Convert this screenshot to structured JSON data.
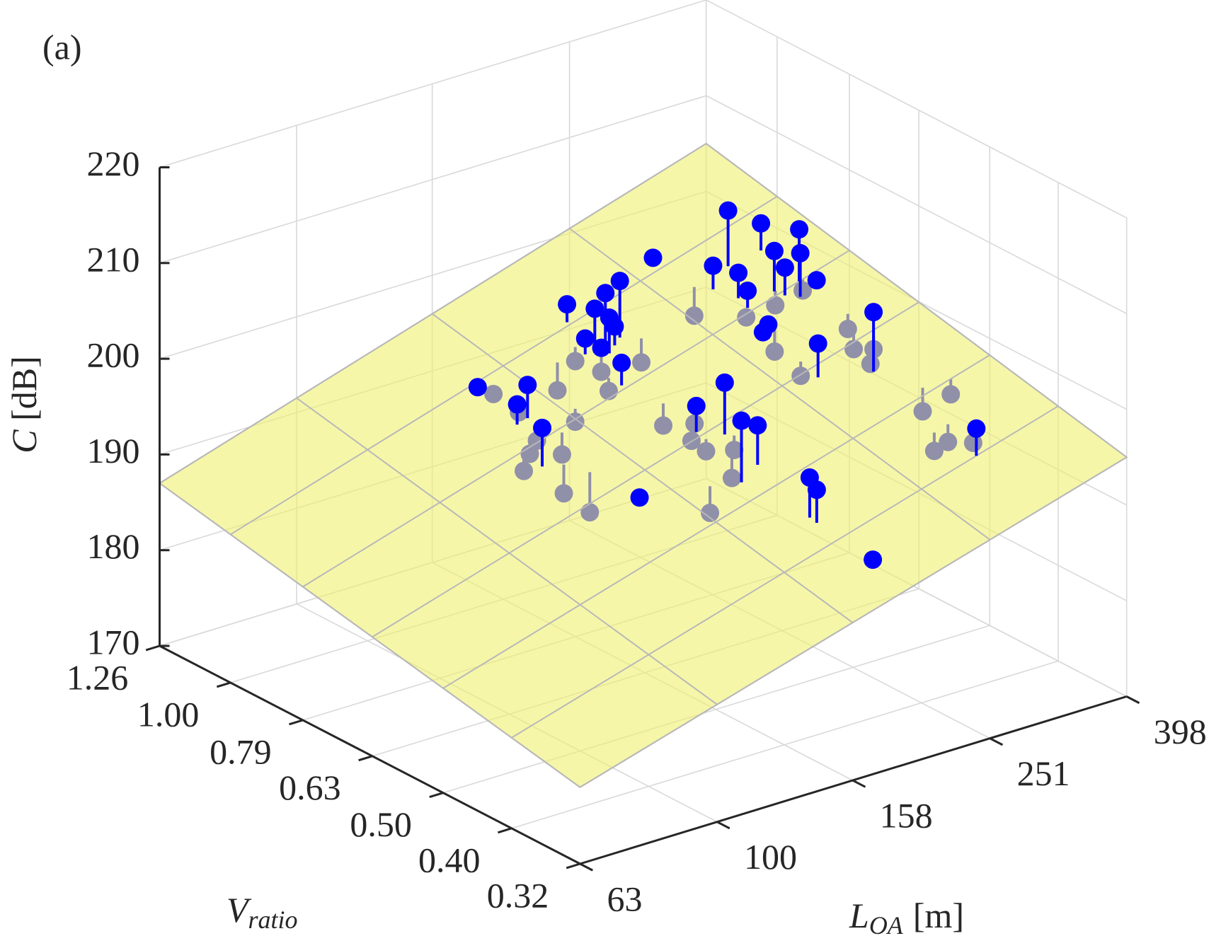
{
  "chart_data": {
    "type": "scatter3d",
    "panel_label": "(a)",
    "xlabel": {
      "symbol": "L",
      "subscript": "OA",
      "unit": "[m]"
    },
    "ylabel": {
      "symbol": "V",
      "subscript": "ratio"
    },
    "zlabel": {
      "symbol": "C",
      "unit": "[dB]"
    },
    "xscale": "log",
    "yscale": "log",
    "grid": true,
    "xlim": [
      63,
      398
    ],
    "ylim": [
      0.32,
      1.26
    ],
    "zlim": [
      170,
      220
    ],
    "xticks": [
      63,
      100,
      158,
      251,
      398
    ],
    "yticks": [
      0.32,
      {
        "value": 0.4,
        "label": "0.40"
      },
      {
        "value": 0.5,
        "label": "0.50"
      },
      0.63,
      0.79,
      {
        "value": 1,
        "label": "1.00"
      },
      1.26
    ],
    "zticks": [
      170,
      180,
      190,
      200,
      210,
      220
    ],
    "surface": {
      "color": "#f0f070",
      "x": [
        63,
        398
      ],
      "y": [
        0.32,
        1.26
      ],
      "z": [
        [
          178,
          187
        ],
        [
          195,
          205
        ]
      ]
    },
    "series": [
      {
        "color": "#0000ff",
        "x": [
          306,
          338,
          336,
          313,
          324,
          270,
          281,
          288,
          316,
          347,
          340,
          286,
          314,
          281,
          275,
          274,
          273,
          308,
          339,
          330,
          336,
          327,
          274,
          285,
          276,
          198,
          210,
          200,
          193,
          198,
          204,
          189,
          195,
          187,
          218,
          189,
          195,
          186,
          176,
          145,
          142,
          145,
          140,
          146,
          132,
          162,
          146,
          139,
          131,
          149,
          138,
          142,
          145,
          200,
          191,
          183,
          197,
          193,
          196,
          194,
          191,
          203,
          191,
          171,
          190,
          190,
          191,
          302,
          349,
          324,
          296,
          310,
          322
        ],
        "y": [
          0.91,
          0.9,
          0.79,
          0.8,
          0.76,
          1.03,
          0.88,
          0.83,
          0.78,
          0.77,
          0.79,
          0.8,
          0.8,
          0.79,
          0.72,
          0.73,
          0.91,
          0.57,
          0.68,
          0.65,
          0.62,
          0.61,
          0.61,
          0.73,
          0.65,
          1.01,
          0.9,
          0.9,
          0.9,
          0.88,
          0.89,
          0.91,
          0.89,
          0.8,
          0.87,
          0.94,
          0.89,
          0.83,
          0.93,
          0.85,
          0.98,
          0.95,
          0.85,
          0.88,
          0.74,
          0.81,
          0.83,
          0.81,
          0.78,
          0.78,
          0.72,
          0.68,
          0.59,
          0.61,
          0.64,
          0.53,
          0.54,
          0.72,
          0.66,
          0.66,
          0.62,
          0.6,
          0.57,
          0.55,
          0.44,
          0.43,
          0.36,
          0.4,
          0.5,
          0.51,
          0.45,
          0.45,
          0.43
        ],
        "z": [
          205.9,
          203.8,
          205.4,
          203.6,
          203.9,
          200.1,
          201.5,
          201.5,
          202.2,
          200.2,
          198.9,
          200.3,
          197.9,
          197.9,
          198.9,
          197.9,
          196.0,
          203.0,
          197.4,
          196.3,
          196.9,
          195.9,
          199.7,
          195.5,
          195.2,
          198.5,
          202.3,
          201.5,
          200.2,
          199.4,
          198.0,
          197.1,
          196.2,
          196.8,
          194.0,
          194.2,
          193.7,
          193.3,
          192.0,
          195.9,
          193.5,
          193.1,
          194.2,
          192.4,
          194.6,
          191.8,
          190.4,
          189.9,
          189.3,
          189.8,
          187.8,
          186.5,
          190.2,
          198.6,
          195.8,
          197.8,
          196.3,
          191.7,
          193.2,
          191.5,
          191.6,
          191.7,
          190.2,
          188.2,
          194.6,
          193.7,
          189.3,
          196.9,
          195.4,
          194.0,
          192.8,
          193.3,
          193.6
        ]
      }
    ]
  }
}
